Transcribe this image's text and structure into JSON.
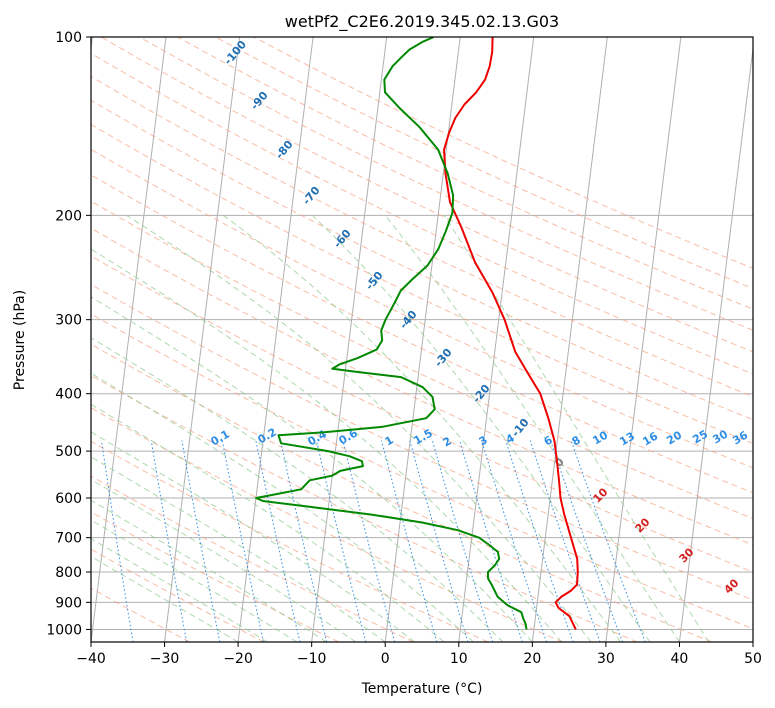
{
  "chart_data": {
    "type": "line",
    "title": "wetPf2_C2E6.2019.345.02.13.G03",
    "xlabel": "Temperature (°C)",
    "ylabel": "Pressure (hPa)",
    "xlim": [
      -40,
      50
    ],
    "ylim": [
      1050,
      100
    ],
    "y_scale": "log",
    "x_ticks": [
      -40,
      -30,
      -20,
      -10,
      0,
      10,
      20,
      30,
      40,
      50
    ],
    "y_ticks": [
      100,
      200,
      300,
      400,
      500,
      600,
      700,
      800,
      900,
      1000
    ],
    "grid": true,
    "series": [
      {
        "color": "#ee0000",
        "x": [
          25.7,
          24.6,
          23.0,
          22.5,
          23.2,
          24.4,
          25.1,
          25.0,
          24.7,
          23.5,
          22.2,
          21.4,
          20.9,
          20.3,
          19.6,
          18.4,
          16.9,
          14.9,
          12.8,
          10.8,
          8.7,
          5.8,
          3.4,
          1.4,
          0.3,
          -0.3,
          0.1,
          0.7,
          1.7,
          3.1,
          4.1,
          4.5,
          4.6,
          4.4
        ],
        "y": [
          1000,
          950,
          920,
          900,
          880,
          860,
          840,
          800,
          760,
          700,
          640,
          600,
          560,
          520,
          480,
          440,
          400,
          370,
          340,
          300,
          270,
          240,
          210,
          190,
          170,
          155,
          145,
          137,
          130,
          124,
          118,
          112,
          106,
          100
        ]
      },
      {
        "color": "#008800",
        "x": [
          19.0,
          18.8,
          18.4,
          18.0,
          16.0,
          14.5,
          14.0,
          13.5,
          12.9,
          12.8,
          13.6,
          14.1,
          13.8,
          12.5,
          11.0,
          8.0,
          3.0,
          -4.0,
          -13.0,
          -19.0,
          -20.0,
          -18.5,
          -14.0,
          -13.0,
          -10.0,
          -9.0,
          -6.0,
          -6.2,
          -8.0,
          -11.0,
          -17.5,
          -18.0,
          -12.0,
          -4.0,
          1.8,
          2.8,
          2.3,
          0.8,
          -2.3,
          -8.0,
          -11.8,
          -10.9,
          -8.5,
          -6.1,
          -5.5,
          -5.8,
          -5.4,
          -4.8,
          -4.3,
          -3.8,
          -2.5,
          -0.6,
          0.6,
          1.3,
          1.9,
          1.7,
          0.6,
          -1.1,
          -4.0,
          -7.0,
          -9.3,
          -9.6,
          -8.7,
          -7.6,
          -6.7,
          -5.1,
          -3.6
        ],
        "y": [
          1000,
          980,
          960,
          935,
          910,
          880,
          860,
          840,
          820,
          800,
          780,
          760,
          740,
          720,
          700,
          680,
          660,
          640,
          620,
          607,
          600,
          595,
          580,
          560,
          550,
          540,
          530,
          520,
          510,
          500,
          485,
          470,
          465,
          455,
          440,
          425,
          405,
          390,
          375,
          368,
          363,
          357,
          348,
          337,
          325,
          313,
          300,
          288,
          278,
          268,
          257,
          243,
          228,
          213,
          198,
          185,
          170,
          155,
          142,
          132,
          124,
          118,
          112,
          108,
          105,
          102,
          100
        ]
      }
    ],
    "dry_adiabat_labels": [
      "-100",
      "-90",
      "-80",
      "-70",
      "-60",
      "-50",
      "-40",
      "-30",
      "-20",
      "-10"
    ],
    "mixing_ratio_labels": [
      "0.1",
      "0.2",
      "0.4",
      "0.6",
      "1",
      "1.5",
      "2",
      "3",
      "4",
      "6",
      "8",
      "10",
      "13",
      "16",
      "20",
      "25",
      "30",
      "36"
    ],
    "moist_adiabat_labels": [
      "0",
      "10",
      "20",
      "30",
      "40"
    ]
  }
}
